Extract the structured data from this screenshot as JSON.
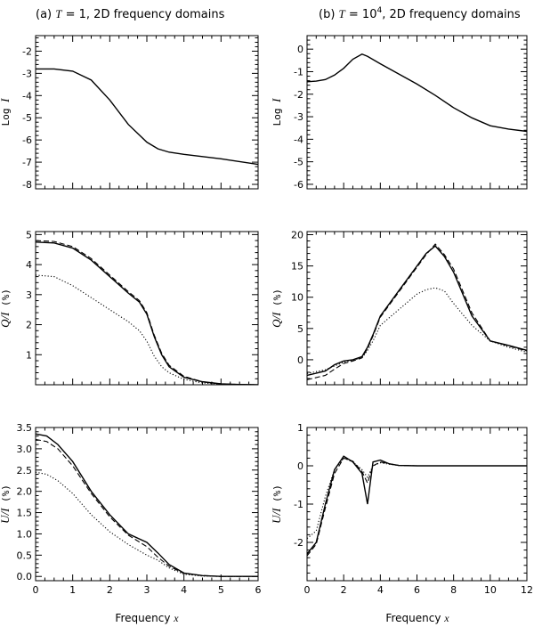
{
  "panel_titles": {
    "a": {
      "prefix": "(a) ",
      "var": "T",
      "rest": " = 1, 2D frequency domains"
    },
    "b": {
      "prefix": "(b) ",
      "var": "T",
      "eq": " = 10",
      "sup": "4",
      "rest": ", 2D frequency domains"
    }
  },
  "xlabel": {
    "text": "Frequency ",
    "var": "x"
  },
  "chart_data": [
    {
      "id": "a-logI",
      "type": "line",
      "ylabel": {
        "text": "Log ",
        "var": "I"
      },
      "xlim": [
        0,
        6
      ],
      "ylim": [
        -8.2,
        -1.3
      ],
      "xticks": [
        0,
        1,
        2,
        3,
        4,
        5,
        6
      ],
      "xtick_labels": [],
      "yticks": [
        -8,
        -7,
        -6,
        -5,
        -4,
        -3,
        -2
      ],
      "ytick_labels": [
        "-8",
        "-7",
        "-6",
        "-5",
        "-4",
        "-3",
        "-2"
      ],
      "series": [
        {
          "style": "solid",
          "x": [
            0,
            0.5,
            1,
            1.5,
            2,
            2.5,
            3,
            3.3,
            3.6,
            4,
            5,
            6
          ],
          "y": [
            -2.8,
            -2.8,
            -2.9,
            -3.3,
            -4.2,
            -5.3,
            -6.1,
            -6.4,
            -6.55,
            -6.65,
            -6.85,
            -7.1
          ]
        }
      ]
    },
    {
      "id": "b-logI",
      "type": "line",
      "ylabel": {
        "text": "Log ",
        "var": "I"
      },
      "xlim": [
        0,
        12
      ],
      "ylim": [
        -6.2,
        0.6
      ],
      "xticks": [
        0,
        2,
        4,
        6,
        8,
        10,
        12
      ],
      "xtick_labels": [],
      "yticks": [
        -6,
        -5,
        -4,
        -3,
        -2,
        -1,
        0
      ],
      "ytick_labels": [
        "-6",
        "-5",
        "-4",
        "-3",
        "-2",
        "-1",
        "0"
      ],
      "series": [
        {
          "style": "solid",
          "x": [
            0,
            0.5,
            1,
            1.5,
            2,
            2.5,
            3,
            3.3,
            4,
            5,
            6,
            7,
            8,
            9,
            10,
            11,
            12
          ],
          "y": [
            -1.45,
            -1.42,
            -1.35,
            -1.15,
            -0.85,
            -0.45,
            -0.22,
            -0.32,
            -0.65,
            -1.1,
            -1.55,
            -2.05,
            -2.6,
            -3.05,
            -3.4,
            -3.55,
            -3.65
          ]
        }
      ]
    },
    {
      "id": "a-QI",
      "type": "line",
      "ylabel": {
        "var": "Q/I",
        "text": " (%)"
      },
      "xlim": [
        0,
        6
      ],
      "ylim": [
        0,
        5.1
      ],
      "xticks": [
        0,
        1,
        2,
        3,
        4,
        5,
        6
      ],
      "xtick_labels": [],
      "yticks": [
        1,
        2,
        3,
        4,
        5
      ],
      "ytick_labels": [
        "1",
        "2",
        "3",
        "4",
        "5"
      ],
      "series": [
        {
          "style": "solid",
          "x": [
            0,
            0.5,
            1,
            1.5,
            2,
            2.5,
            2.8,
            3,
            3.2,
            3.4,
            3.6,
            4,
            4.5,
            5,
            5.5,
            6
          ],
          "y": [
            4.75,
            4.72,
            4.55,
            4.15,
            3.6,
            3.05,
            2.75,
            2.35,
            1.6,
            1.0,
            0.6,
            0.25,
            0.1,
            0.03,
            0.01,
            0.0
          ]
        },
        {
          "style": "dashed",
          "x": [
            0,
            0.5,
            1,
            1.5,
            2,
            2.5,
            2.8,
            3,
            3.2,
            3.4,
            3.6,
            4,
            4.5,
            5,
            5.5,
            6
          ],
          "y": [
            4.8,
            4.77,
            4.6,
            4.2,
            3.65,
            3.1,
            2.8,
            2.4,
            1.65,
            1.05,
            0.65,
            0.28,
            0.1,
            0.03,
            0.01,
            0.0
          ]
        },
        {
          "style": "dotted",
          "x": [
            0,
            0.5,
            1,
            1.5,
            2,
            2.5,
            2.8,
            3,
            3.2,
            3.4,
            3.6,
            4,
            4.5,
            5,
            5.5,
            6
          ],
          "y": [
            3.65,
            3.6,
            3.3,
            2.9,
            2.5,
            2.1,
            1.8,
            1.45,
            0.95,
            0.6,
            0.4,
            0.18,
            0.06,
            0.02,
            0.01,
            0.0
          ]
        }
      ]
    },
    {
      "id": "b-QI",
      "type": "line",
      "ylabel": {
        "var": "Q/I",
        "text": " (%)"
      },
      "xlim": [
        0,
        12
      ],
      "ylim": [
        -4,
        20.5
      ],
      "xticks": [
        0,
        2,
        4,
        6,
        8,
        10,
        12
      ],
      "xtick_labels": [],
      "yticks": [
        0,
        5,
        10,
        15,
        20
      ],
      "ytick_labels": [
        "0",
        "5",
        "10",
        "15",
        "20"
      ],
      "series": [
        {
          "style": "solid",
          "x": [
            0,
            1,
            1.5,
            2,
            2.5,
            3,
            3.3,
            3.6,
            4,
            5,
            6,
            6.5,
            7,
            7.5,
            8,
            9,
            10,
            11,
            12
          ],
          "y": [
            -2.5,
            -1.8,
            -0.8,
            -0.2,
            0,
            0.5,
            2,
            4,
            7,
            11,
            15,
            17,
            18.2,
            16.5,
            14,
            7,
            3,
            2.3,
            1.5
          ]
        },
        {
          "style": "dashed",
          "x": [
            0,
            1,
            1.5,
            2,
            2.5,
            3,
            3.3,
            3.6,
            4,
            5,
            6,
            6.5,
            7,
            7.5,
            8,
            9,
            10,
            11,
            12
          ],
          "y": [
            -3.2,
            -2.5,
            -1.5,
            -0.6,
            -0.2,
            0.3,
            1.8,
            3.8,
            6.8,
            10.8,
            14.8,
            16.8,
            18.5,
            16.8,
            14.5,
            7.5,
            3,
            2.2,
            1.4
          ]
        },
        {
          "style": "dotted",
          "x": [
            0,
            1,
            1.5,
            2,
            2.5,
            3,
            3.3,
            3.6,
            4,
            5,
            6,
            6.5,
            7,
            7.5,
            8,
            9,
            10,
            11,
            12
          ],
          "y": [
            -2.2,
            -1.6,
            -1.0,
            -0.4,
            -0.1,
            0.3,
            1.5,
            3.0,
            5.5,
            8.0,
            10.5,
            11.2,
            11.5,
            11.0,
            9,
            5.5,
            3,
            2.0,
            1.2
          ]
        }
      ]
    },
    {
      "id": "a-UI",
      "type": "line",
      "ylabel": {
        "var": "U/I",
        "text": " (%)"
      },
      "xlim": [
        0,
        6
      ],
      "ylim": [
        -0.1,
        3.5
      ],
      "xticks": [
        0,
        1,
        2,
        3,
        4,
        5,
        6
      ],
      "xtick_labels": [
        "0",
        "1",
        "2",
        "3",
        "4",
        "5",
        "6"
      ],
      "yticks": [
        0.0,
        0.5,
        1.0,
        1.5,
        2.0,
        2.5,
        3.0,
        3.5
      ],
      "ytick_labels": [
        "0.0",
        "0.5",
        "1.0",
        "1.5",
        "2.0",
        "2.5",
        "3.0",
        "3.5"
      ],
      "series": [
        {
          "style": "solid",
          "x": [
            0,
            0.3,
            0.6,
            1,
            1.5,
            2,
            2.5,
            3,
            3.3,
            3.6,
            4,
            4.5,
            5,
            5.5,
            6
          ],
          "y": [
            3.35,
            3.3,
            3.1,
            2.7,
            2.0,
            1.45,
            1.0,
            0.8,
            0.55,
            0.28,
            0.08,
            0.02,
            0.0,
            0.0,
            0.0
          ]
        },
        {
          "style": "dashed",
          "x": [
            0,
            0.3,
            0.6,
            1,
            1.5,
            2,
            2.5,
            3,
            3.3,
            3.6,
            4,
            4.5,
            5,
            5.5,
            6
          ],
          "y": [
            3.22,
            3.17,
            3.0,
            2.6,
            1.95,
            1.4,
            0.97,
            0.7,
            0.45,
            0.24,
            0.07,
            0.02,
            0.0,
            0.0,
            0.0
          ]
        },
        {
          "style": "dotted",
          "x": [
            0,
            0.3,
            0.6,
            1,
            1.5,
            2,
            2.5,
            3,
            3.3,
            3.6,
            4,
            4.5,
            5,
            5.5,
            6
          ],
          "y": [
            2.45,
            2.4,
            2.25,
            1.95,
            1.45,
            1.05,
            0.75,
            0.5,
            0.38,
            0.2,
            0.05,
            0.01,
            0.0,
            0.0,
            0.0
          ]
        }
      ]
    },
    {
      "id": "b-UI",
      "type": "line",
      "ylabel": {
        "var": "U/I",
        "text": " (%)"
      },
      "xlim": [
        0,
        12
      ],
      "ylim": [
        -3,
        1
      ],
      "xticks": [
        0,
        2,
        4,
        6,
        8,
        10,
        12
      ],
      "xtick_labels": [
        "0",
        "2",
        "4",
        "6",
        "8",
        "10",
        "12"
      ],
      "yticks": [
        -2,
        -1,
        0,
        1
      ],
      "ytick_labels": [
        "-2",
        "-1",
        "0",
        "1"
      ],
      "series": [
        {
          "style": "solid",
          "x": [
            0,
            0.5,
            1,
            1.5,
            2,
            2.5,
            3,
            3.3,
            3.6,
            4,
            4.5,
            5,
            6,
            8,
            10,
            12
          ],
          "y": [
            -2.3,
            -2.0,
            -1.0,
            -0.1,
            0.25,
            0.1,
            -0.2,
            -1.0,
            0.1,
            0.15,
            0.05,
            0.01,
            0.0,
            0.0,
            0.0,
            0.0
          ]
        },
        {
          "style": "dashed",
          "x": [
            0,
            0.5,
            1,
            1.5,
            2,
            2.5,
            3,
            3.3,
            3.6,
            4,
            4.5,
            5,
            6,
            8,
            10,
            12
          ],
          "y": [
            -2.35,
            -2.05,
            -1.1,
            -0.2,
            0.2,
            0.12,
            -0.15,
            -0.45,
            0.0,
            0.1,
            0.05,
            0.01,
            0.0,
            0.0,
            0.0,
            0.0
          ]
        },
        {
          "style": "dotted",
          "x": [
            0,
            0.5,
            1,
            1.5,
            2,
            2.5,
            3,
            3.3,
            3.6,
            4,
            4.5,
            5,
            6,
            8,
            10,
            12
          ],
          "y": [
            -1.9,
            -1.7,
            -0.8,
            -0.1,
            0.2,
            0.1,
            -0.1,
            -0.3,
            0.0,
            0.08,
            0.04,
            0.01,
            0.0,
            0.0,
            0.0,
            0.0
          ]
        }
      ]
    }
  ]
}
